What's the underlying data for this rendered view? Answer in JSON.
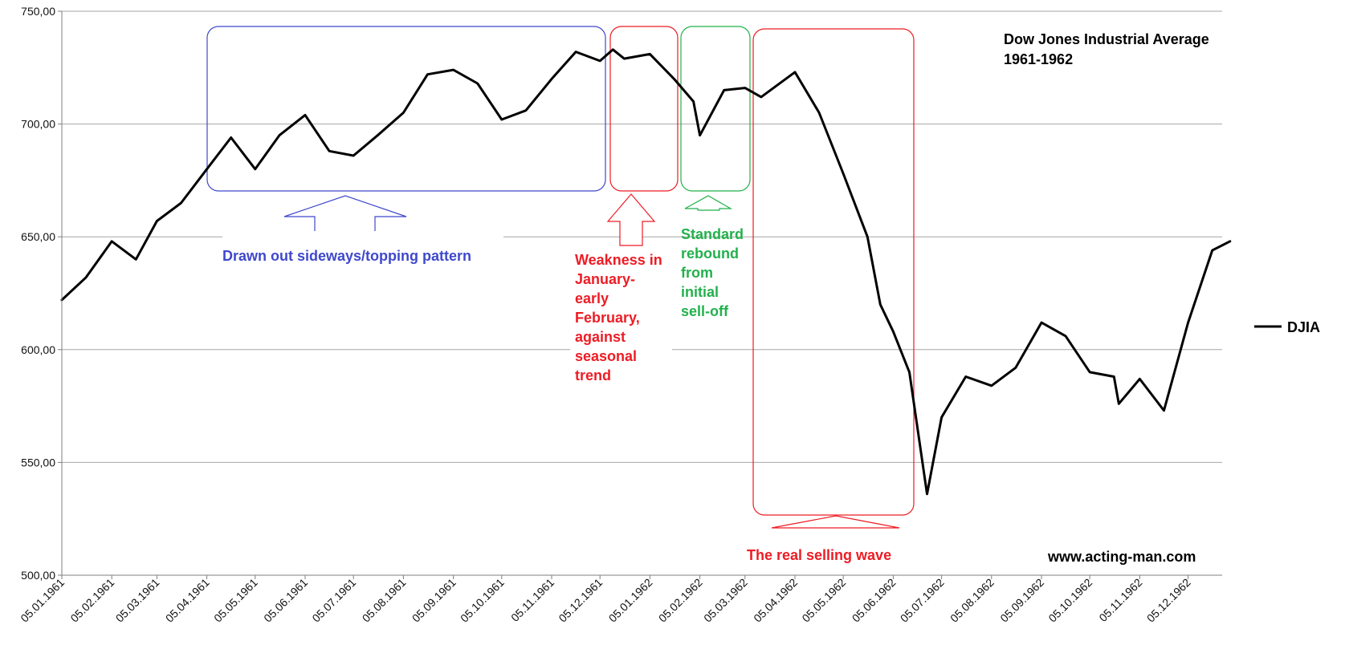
{
  "chart_data": {
    "type": "line",
    "title": [
      "Dow Jones Industrial Average",
      "1961-1962"
    ],
    "watermark": "www.acting-man.com",
    "ylim": [
      500,
      750
    ],
    "yticks": [
      "500,00",
      "550,00",
      "600,00",
      "650,00",
      "700,00",
      "750,00"
    ],
    "ytick_values": [
      500,
      550,
      600,
      650,
      700,
      750
    ],
    "xticks": [
      "05.01.1961",
      "05.02.1961",
      "05.03.1961",
      "05.04.1961",
      "05.05.1961",
      "05.06.1961",
      "05.07.1961",
      "05.08.1961",
      "05.09.1961",
      "05.10.1961",
      "05.11.1961",
      "05.12.1961",
      "05.01.1962",
      "05.02.1962",
      "05.03.1962",
      "05.04.1962",
      "05.05.1962",
      "05.06.1962",
      "05.07.1962",
      "05.08.1962",
      "05.09.1962",
      "05.10.1962",
      "05.11.1962",
      "05.12.1962"
    ],
    "grid": true,
    "legend": {
      "position": "right",
      "entries": [
        "DJIA"
      ]
    },
    "series": [
      {
        "name": "DJIA",
        "color": "#000000",
        "x": [
          "1961-01-05",
          "1961-01-20",
          "1961-02-05",
          "1961-02-20",
          "1961-03-05",
          "1961-03-20",
          "1961-04-05",
          "1961-04-20",
          "1961-05-05",
          "1961-05-20",
          "1961-06-05",
          "1961-06-20",
          "1961-07-05",
          "1961-07-20",
          "1961-08-05",
          "1961-08-20",
          "1961-09-05",
          "1961-09-20",
          "1961-10-05",
          "1961-10-20",
          "1961-11-05",
          "1961-11-20",
          "1961-12-05",
          "1961-12-13",
          "1961-12-20",
          "1962-01-05",
          "1962-01-20",
          "1962-02-01",
          "1962-02-05",
          "1962-02-20",
          "1962-03-05",
          "1962-03-15",
          "1962-04-05",
          "1962-04-20",
          "1962-05-05",
          "1962-05-20",
          "1962-05-28",
          "1962-06-05",
          "1962-06-15",
          "1962-06-26",
          "1962-07-05",
          "1962-07-20",
          "1962-08-05",
          "1962-08-20",
          "1962-09-05",
          "1962-09-20",
          "1962-10-05",
          "1962-10-20",
          "1962-10-23",
          "1962-11-05",
          "1962-11-20",
          "1962-12-05",
          "1962-12-20",
          "1962-12-31"
        ],
        "values": [
          622,
          632,
          648,
          640,
          657,
          665,
          680,
          694,
          680,
          695,
          704,
          688,
          686,
          695,
          705,
          722,
          724,
          718,
          702,
          706,
          720,
          732,
          728,
          733,
          729,
          731,
          720,
          710,
          695,
          715,
          716,
          712,
          723,
          705,
          678,
          650,
          620,
          608,
          590,
          536,
          570,
          588,
          584,
          592,
          612,
          606,
          590,
          588,
          576,
          587,
          573,
          612,
          644,
          648
        ]
      }
    ]
  },
  "annotations": {
    "sideways": "Drawn out sideways/topping pattern",
    "weakness": [
      "Weakness in",
      "January-",
      "early",
      "February,",
      "against",
      "seasonal",
      "trend"
    ],
    "rebound": [
      "Standard",
      "rebound",
      "from",
      "initial",
      "sell-off"
    ],
    "selling": "The real selling wave"
  },
  "colors": {
    "blue": "#3f48cc",
    "red": "#ed1c24",
    "green": "#22b14c"
  }
}
